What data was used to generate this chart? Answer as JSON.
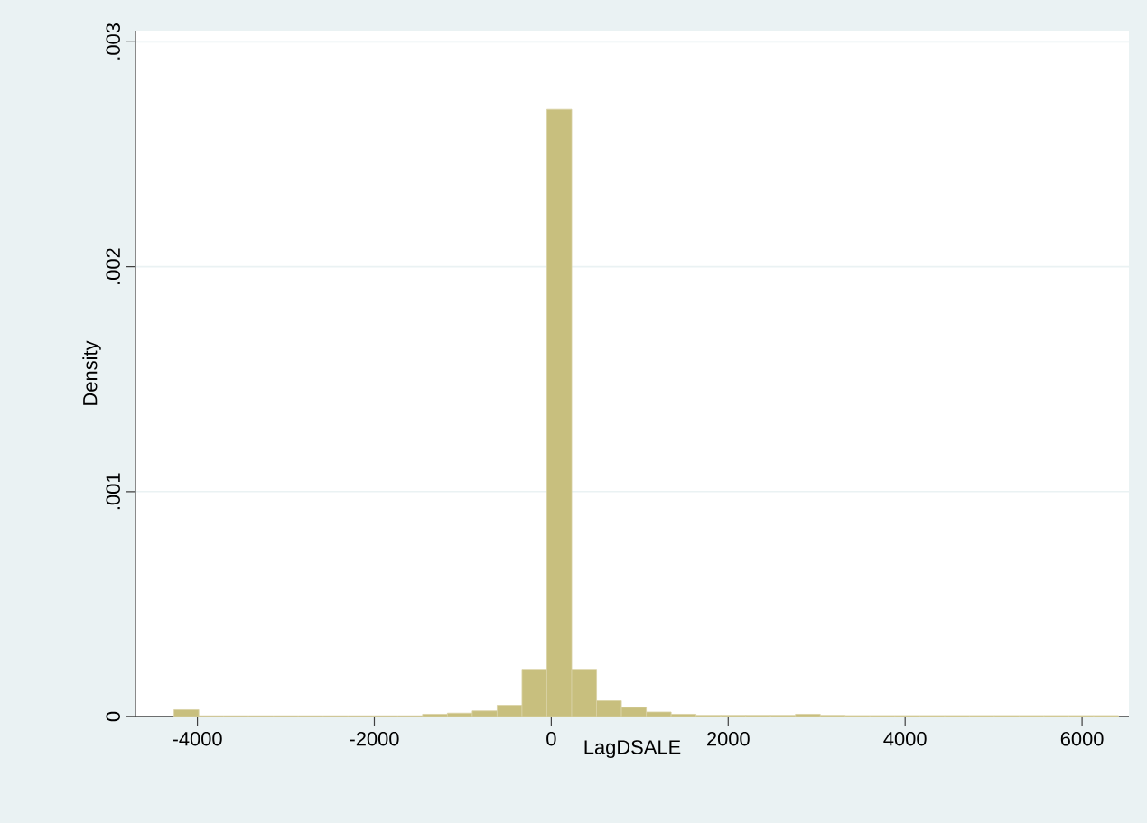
{
  "chart_data": {
    "type": "histogram",
    "xlabel": "LagDSALE",
    "ylabel": "Density",
    "color": "#c8bf7e",
    "bins": [
      -4265,
      -3984,
      -3703,
      -3422,
      -3141,
      -2860,
      -2579,
      -2298,
      -2017,
      -1736,
      -1455,
      -1174,
      -893,
      -612,
      -331,
      -50,
      231,
      512,
      793,
      1074,
      1355,
      1636,
      1917,
      2198,
      2479,
      2760,
      3041,
      3322,
      3603,
      3884,
      4165,
      4446,
      4727,
      5008,
      5289,
      5570,
      5851,
      6132,
      6413
    ],
    "values": [
      3e-05,
      3e-06,
      3e-06,
      3e-06,
      3e-06,
      3e-06,
      3e-06,
      3e-06,
      3e-06,
      3e-06,
      1e-05,
      1.5e-05,
      2.5e-05,
      5e-05,
      0.00021,
      0.0027,
      0.00021,
      7e-05,
      4e-05,
      2e-05,
      1e-05,
      5e-06,
      5e-06,
      5e-06,
      5e-06,
      1e-05,
      5e-06,
      4e-06,
      4e-06,
      4e-06,
      4e-06,
      4e-06,
      4e-06,
      4e-06,
      4e-06,
      4e-06,
      4e-06,
      4e-06
    ],
    "xlim": [
      -4700,
      6530
    ],
    "ylim": [
      0,
      0.00305
    ],
    "xticks": [
      -4000,
      -2000,
      0,
      2000,
      4000,
      6000
    ],
    "yticks": [
      0,
      {
        "value": 0.001,
        "label": ".001"
      },
      {
        "value": 0.002,
        "label": ".002"
      },
      {
        "value": 0.003,
        "label": ".003"
      }
    ],
    "grid": "y"
  }
}
